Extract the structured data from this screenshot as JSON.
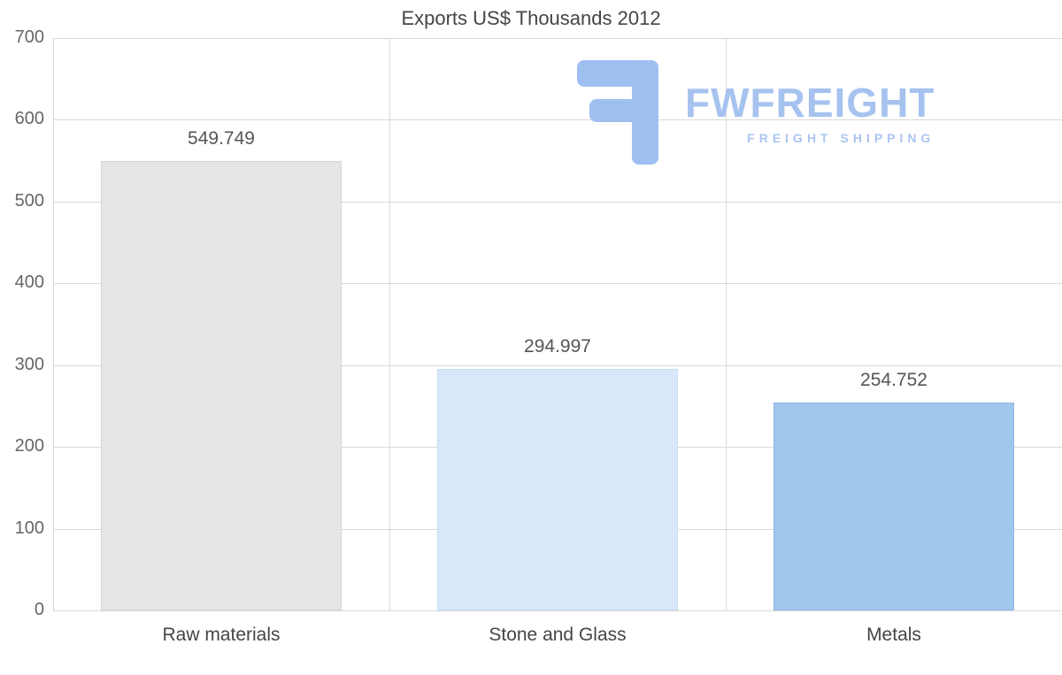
{
  "title": "Exports US$ Thousands 2012",
  "watermark": {
    "brand": "FWFREIGHT",
    "tagline": "FREIGHT SHIPPING",
    "color": "#a6c2ef"
  },
  "chart_data": {
    "type": "bar",
    "title": "Exports US$ Thousands 2012",
    "categories": [
      "Raw materials",
      "Stone and Glass",
      "Metals"
    ],
    "values": [
      549.749,
      294.997,
      254.752
    ],
    "value_labels": [
      "549.749",
      "294.997",
      "254.752"
    ],
    "bar_colors": [
      "#e5e5e5",
      "#d8e8fa",
      "#a1c6ec"
    ],
    "bar_border_colors": [
      "#d6d6d6",
      "#c7dcf3",
      "#92b9e2"
    ],
    "grid_color": "#d9d9d9",
    "xlabel": "",
    "ylabel": "",
    "ylim": [
      0,
      700
    ],
    "yticks": [
      0,
      100,
      200,
      300,
      400,
      500,
      600,
      700
    ],
    "grid": true,
    "legend": false
  }
}
